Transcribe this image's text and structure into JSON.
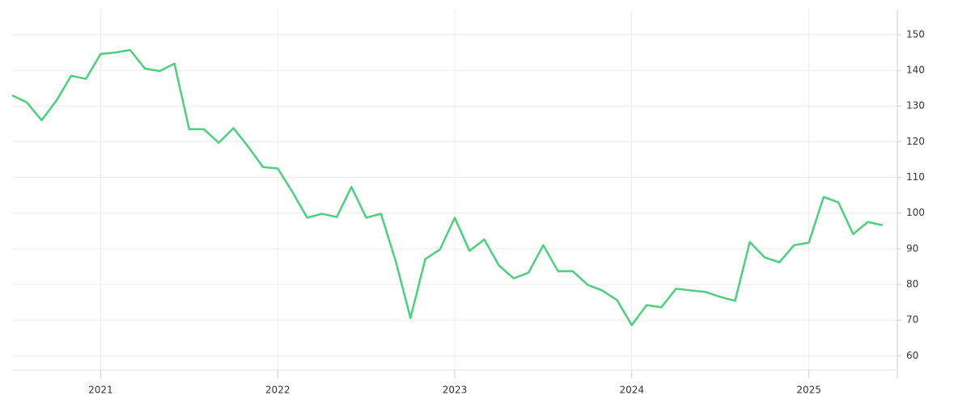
{
  "chart_data": {
    "type": "line",
    "x": [
      2020.5,
      2020.5833,
      2020.6667,
      2020.75,
      2020.8333,
      2020.9167,
      2021,
      2021.0833,
      2021.1667,
      2021.25,
      2021.3333,
      2021.4167,
      2021.5,
      2021.5833,
      2021.6667,
      2021.75,
      2021.8333,
      2021.9167,
      2022,
      2022.0833,
      2022.1667,
      2022.25,
      2022.3333,
      2022.4167,
      2022.5,
      2022.5833,
      2022.6667,
      2022.75,
      2022.8333,
      2022.9167,
      2023,
      2023.0833,
      2023.1667,
      2023.25,
      2023.3333,
      2023.4167,
      2023.5,
      2023.5833,
      2023.6667,
      2023.75,
      2023.8333,
      2023.9167,
      2024,
      2024.0833,
      2024.1667,
      2024.25,
      2024.3333,
      2024.4167,
      2024.5,
      2024.5833,
      2024.6667,
      2024.75,
      2024.8333,
      2024.9167,
      2025,
      2025.0833,
      2025.1667,
      2025.25,
      2025.3333,
      2025.4167
    ],
    "series": [
      {
        "color": "#4cd07d",
        "values": [
          133.0,
          131.0,
          126.0,
          131.5,
          138.5,
          137.6,
          144.6,
          145.0,
          145.7,
          140.5,
          139.8,
          141.9,
          123.5,
          123.5,
          119.7,
          123.8,
          118.6,
          112.9,
          112.5,
          105.9,
          98.7,
          99.8,
          98.9,
          107.3,
          98.7,
          99.8,
          86.5,
          70.6,
          87.1,
          89.8,
          98.7,
          89.4,
          92.6,
          85.3,
          81.7,
          83.3,
          91.0,
          83.7,
          83.7,
          79.9,
          78.3,
          75.6,
          68.6,
          74.2,
          73.6,
          78.8,
          78.3,
          77.9,
          76.5,
          75.4,
          91.9,
          87.6,
          86.2,
          91.0,
          91.7,
          104.5,
          103.0,
          94.1,
          97.5,
          96.6
        ]
      }
    ],
    "xlim": [
      2020.5,
      2025.5
    ],
    "xticks": [
      2021,
      2022,
      2023,
      2024,
      2025
    ],
    "ylim": [
      56,
      157
    ],
    "yticks": [
      60,
      70,
      80,
      90,
      100,
      110,
      120,
      130,
      140,
      150
    ],
    "grid": true
  }
}
